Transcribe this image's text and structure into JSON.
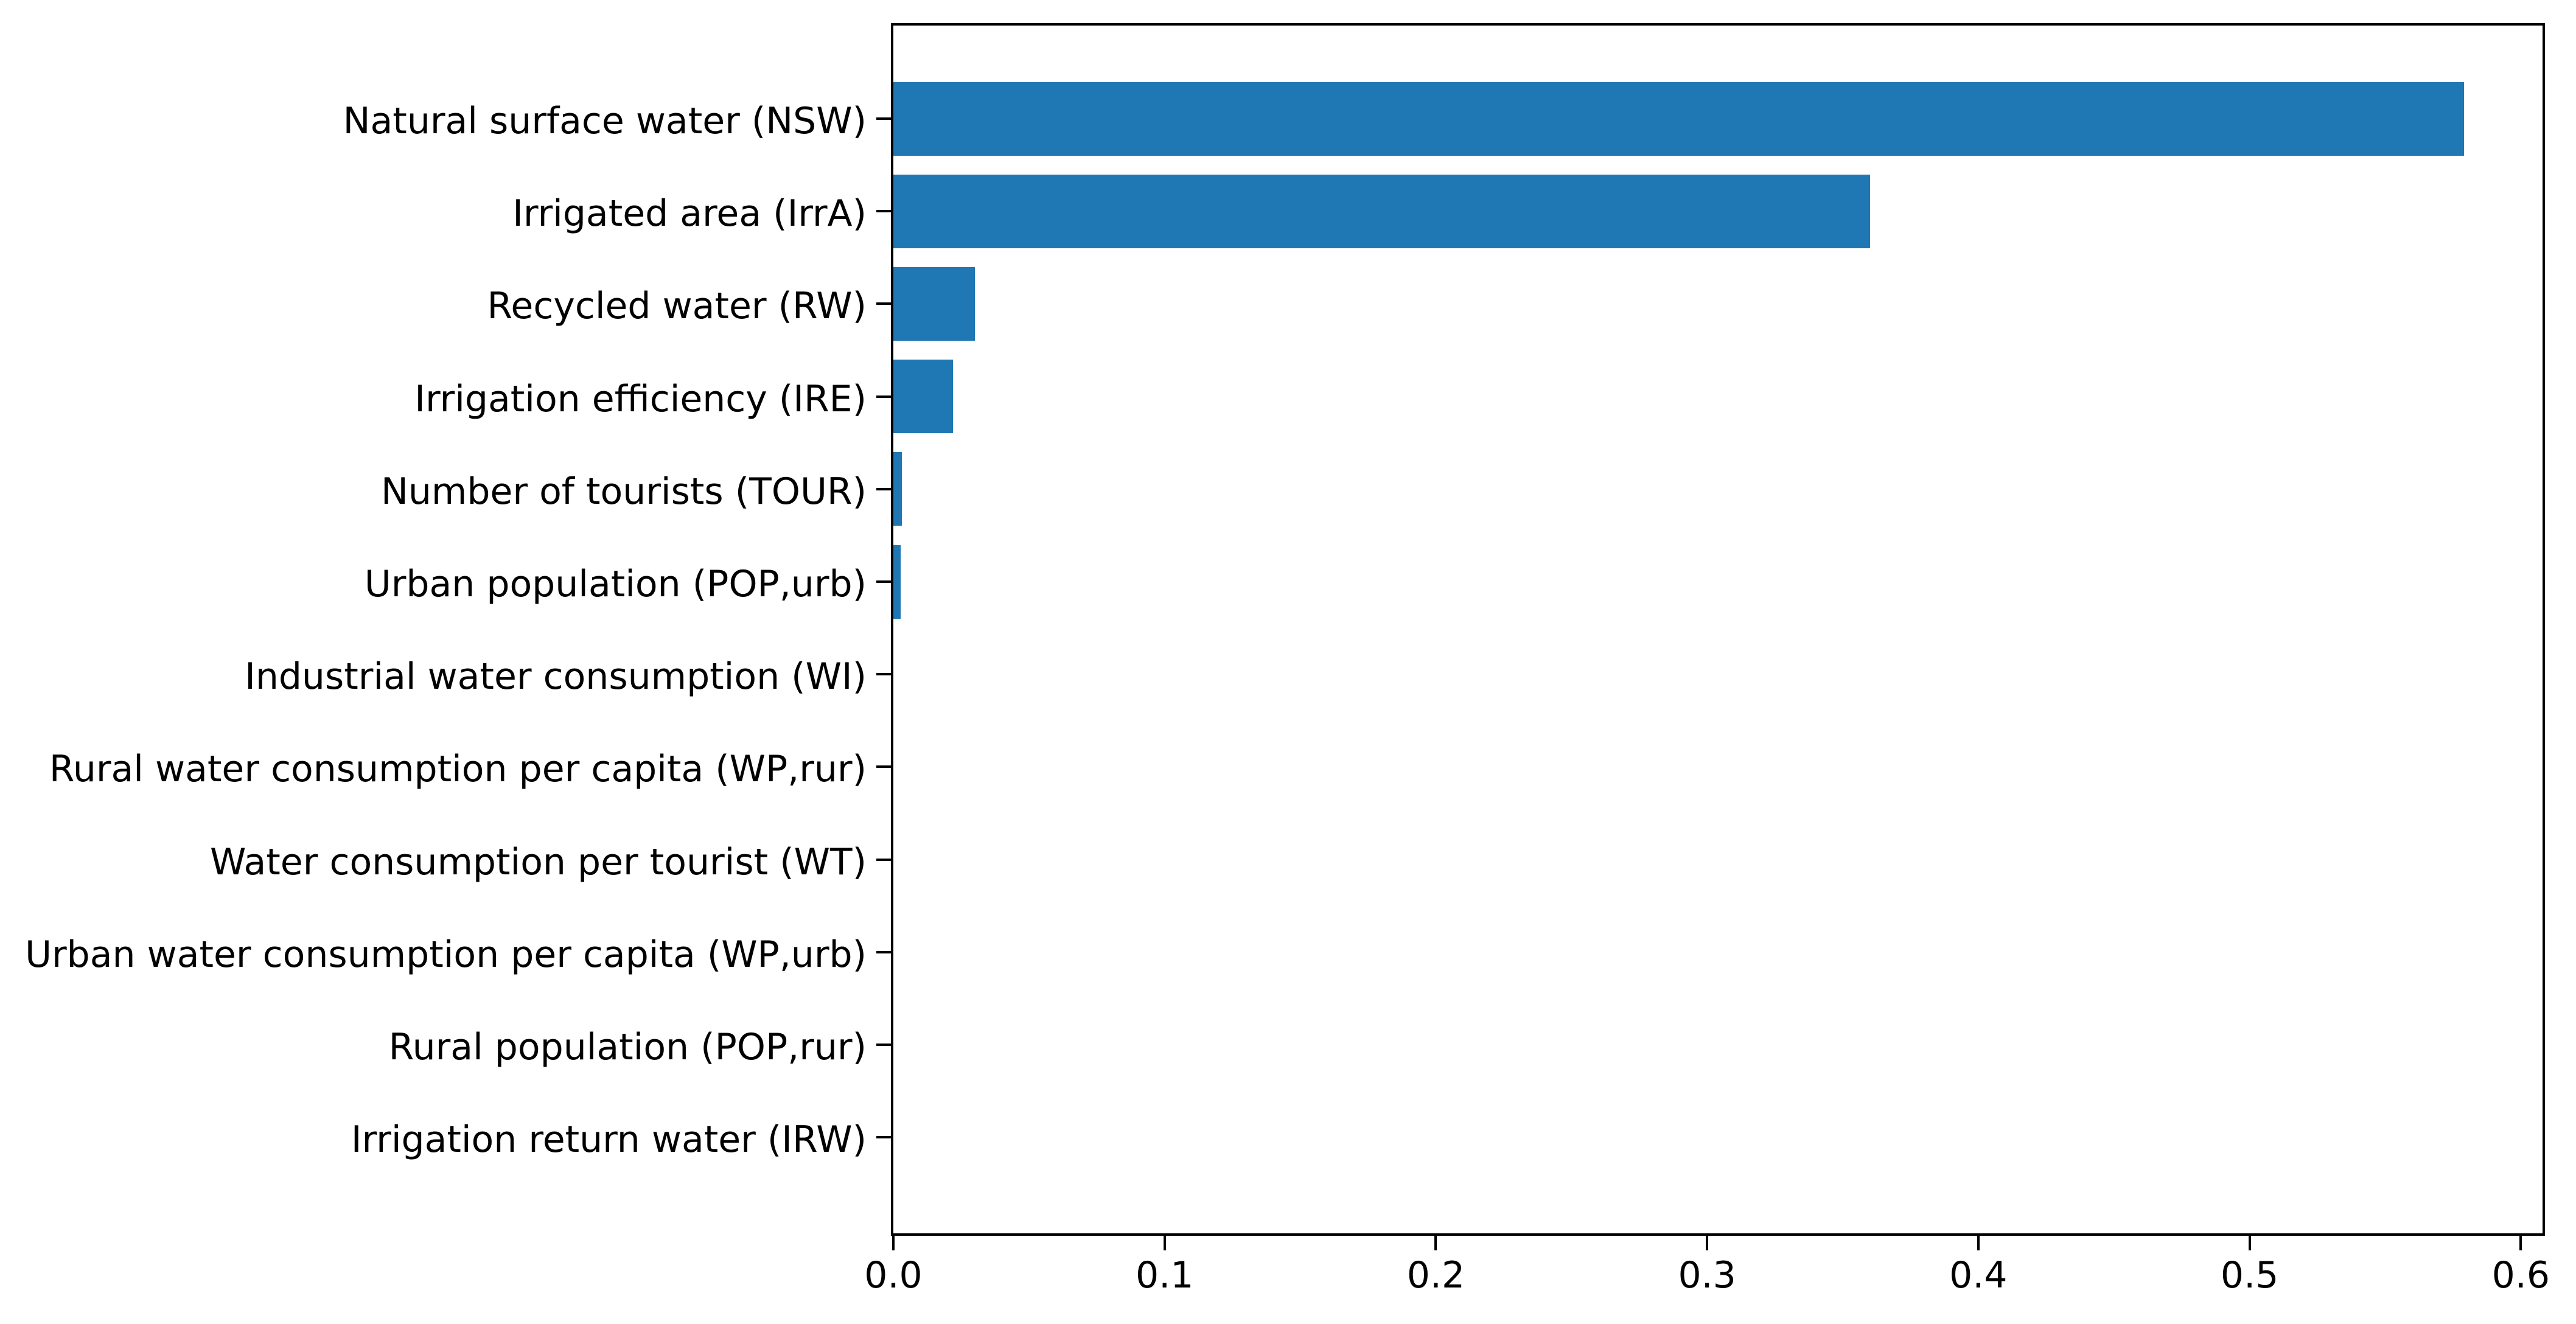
{
  "figure": {
    "background_color": "#ffffff"
  },
  "chart_data": {
    "type": "bar",
    "orientation": "horizontal",
    "title": "",
    "xlabel": "",
    "ylabel": "",
    "categories": [
      "Natural surface water (NSW)",
      "Irrigated area (IrrA)",
      "Recycled water (RW)",
      "Irrigation efficiency (IRE)",
      "Number of tourists (TOUR)",
      "Urban population (POP,urb)",
      "Industrial water consumption (WI)",
      "Rural water consumption per capita (WP,rur)",
      "Water consumption per tourist (WT)",
      "Urban water consumption per capita (WP,urb)",
      "Rural population (POP,rur)",
      "Irrigation return water (IRW)"
    ],
    "values": [
      0.579,
      0.36,
      0.03,
      0.022,
      0.0032,
      0.0028,
      0.0,
      0.0,
      0.0,
      0.0,
      0.0,
      0.0
    ],
    "x_tick_labels": [
      "0.0",
      "0.1",
      "0.2",
      "0.3",
      "0.4",
      "0.5",
      "0.6"
    ],
    "x_tick_values": [
      0.0,
      0.1,
      0.2,
      0.3,
      0.4,
      0.5,
      0.6
    ],
    "xlim": [
      0.0,
      0.608
    ],
    "bar_color": "#1f77b4",
    "axis_color": "#000000",
    "text_color": "#000000",
    "grid": false,
    "legend_position": "none"
  }
}
